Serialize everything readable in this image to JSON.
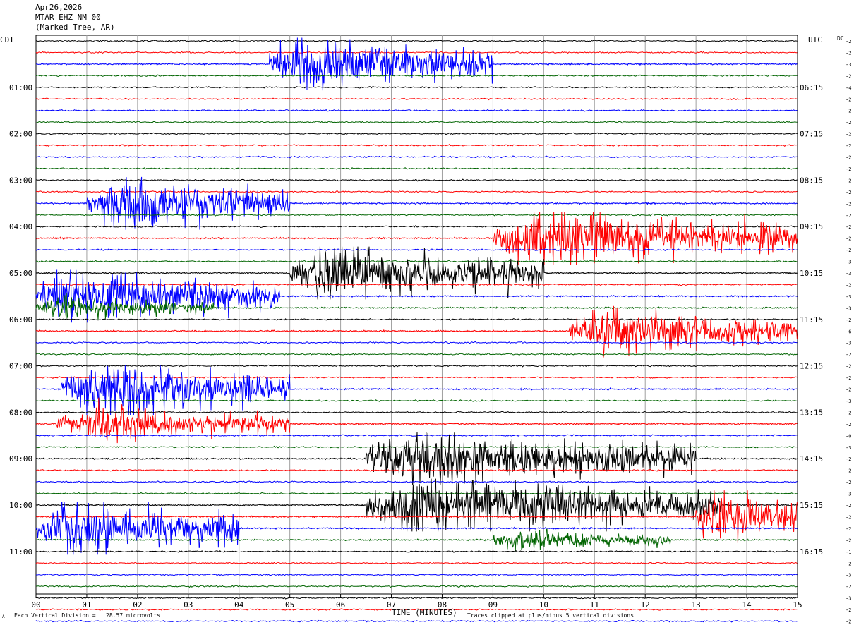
{
  "header": {
    "date": "Apr26,2026",
    "station": "MTAR EHZ NM 00",
    "location": "(Marked Tree, AR)"
  },
  "left_tz": "CDT",
  "right_tz": "UTC",
  "dc_label": "DC",
  "footer": {
    "scale_note": "Each Vertical Division =   28.57 microvolts",
    "clip_note": "Traces clipped at plus/minus 5 vertical divisions",
    "corner_mark": "A"
  },
  "chart_data": {
    "type": "line",
    "title": "",
    "xlabel": "TIME (MINUTES)",
    "ylabel": "",
    "xlim": [
      0,
      15
    ],
    "x_ticks": [
      "00",
      "01",
      "02",
      "03",
      "04",
      "05",
      "06",
      "07",
      "08",
      "09",
      "10",
      "11",
      "12",
      "13",
      "14",
      "15"
    ],
    "grid": true,
    "trace_colors": [
      "#000000",
      "#ff0000",
      "#0000ff",
      "#006400"
    ],
    "left_time_labels": [
      "01:00",
      "02:00",
      "03:00",
      "04:00",
      "05:00",
      "06:00",
      "07:00",
      "08:00",
      "09:00",
      "10:00",
      "11:00"
    ],
    "right_time_labels": [
      "06:15",
      "07:15",
      "08:15",
      "09:15",
      "10:15",
      "11:15",
      "12:15",
      "13:15",
      "14:15",
      "15:15",
      "16:15"
    ],
    "dc_offsets": [
      "-2",
      "-2",
      "-3",
      "-2",
      "-4",
      "-2",
      "-2",
      "-2",
      "-2",
      "-2",
      "-2",
      "-2",
      "-2",
      "-2",
      "-2",
      "-2",
      "-2",
      "-2",
      "-2",
      "-3",
      "-3",
      "-2",
      "-3",
      "-3",
      "-2",
      "-6",
      "-3",
      "-2",
      "-2",
      "-2",
      "-2",
      "-3",
      "-2",
      "-2",
      "-0",
      "-3",
      "-2",
      "-2",
      "-2",
      "-3",
      "-2",
      "-2",
      "-2",
      "-2",
      "-1",
      "-2",
      "-3",
      "-2",
      "-3",
      "-2",
      "-2",
      "-2"
    ],
    "events": [
      {
        "trace": 2,
        "start_min": 4.6,
        "end_min": 9.0,
        "amplitude": 5
      },
      {
        "trace": 14,
        "start_min": 1.0,
        "end_min": 5.0,
        "amplitude": 5
      },
      {
        "trace": 20,
        "start_min": 5.0,
        "end_min": 10.0,
        "amplitude": 5
      },
      {
        "trace": 17,
        "start_min": 9.0,
        "end_min": 15.0,
        "amplitude": 5
      },
      {
        "trace": 22,
        "start_min": 0.0,
        "end_min": 4.8,
        "amplitude": 5
      },
      {
        "trace": 23,
        "start_min": 0.0,
        "end_min": 3.5,
        "amplitude": 2
      },
      {
        "trace": 25,
        "start_min": 10.5,
        "end_min": 15.0,
        "amplitude": 4
      },
      {
        "trace": 30,
        "start_min": 0.5,
        "end_min": 5.0,
        "amplitude": 5
      },
      {
        "trace": 33,
        "start_min": 0.4,
        "end_min": 5.0,
        "amplitude": 3
      },
      {
        "trace": 36,
        "start_min": 6.5,
        "end_min": 13.0,
        "amplitude": 5
      },
      {
        "trace": 40,
        "start_min": 6.5,
        "end_min": 13.5,
        "amplitude": 5
      },
      {
        "trace": 41,
        "start_min": 13.0,
        "end_min": 15.0,
        "amplitude": 5
      },
      {
        "trace": 42,
        "start_min": 0.0,
        "end_min": 4.0,
        "amplitude": 5
      },
      {
        "trace": 43,
        "start_min": 9.0,
        "end_min": 12.5,
        "amplitude": 2
      }
    ]
  }
}
